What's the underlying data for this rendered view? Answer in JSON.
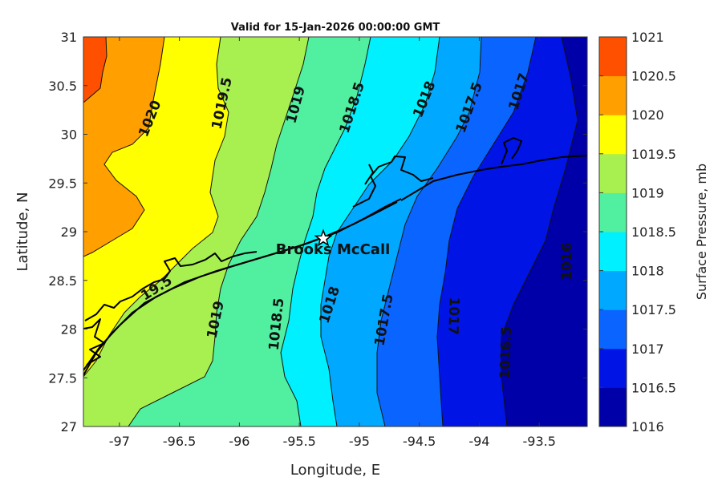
{
  "title": "Valid for 15-Jan-2026 00:00:00 GMT",
  "x_axis": {
    "label": "Longitude, E",
    "ticks": [
      "-97",
      "-96.5",
      "-96",
      "-95.5",
      "-95",
      "-94.5",
      "-94",
      "-93.5"
    ]
  },
  "y_axis": {
    "label": "Latitude, N",
    "ticks": [
      "27",
      "27.5",
      "28",
      "28.5",
      "29",
      "29.5",
      "30",
      "30.5",
      "31"
    ]
  },
  "colorbar": {
    "label": "Surface Pressure, mb",
    "ticks": [
      "1016",
      "1016.5",
      "1017",
      "1017.5",
      "1018",
      "1018.5",
      "1019",
      "1019.5",
      "1020",
      "1020.5",
      "1021"
    ],
    "colors": [
      "#0000a8",
      "#0014e6",
      "#0a64ff",
      "#00a8ff",
      "#00f0ff",
      "#50f0a0",
      "#a8f050",
      "#ffff00",
      "#ffa000",
      "#ff5000",
      "#ff0000"
    ]
  },
  "contour_labels": [
    "1020",
    "1019.5",
    "1019",
    "1018.5",
    "1018",
    "1017.5",
    "1017",
    "19.5",
    "1019",
    "1018.5",
    "1018",
    "1017.5",
    "1017",
    "1016.5",
    "1016"
  ],
  "station": {
    "name": "Brooks McCall",
    "lon": -95.3,
    "lat": 28.93
  }
}
